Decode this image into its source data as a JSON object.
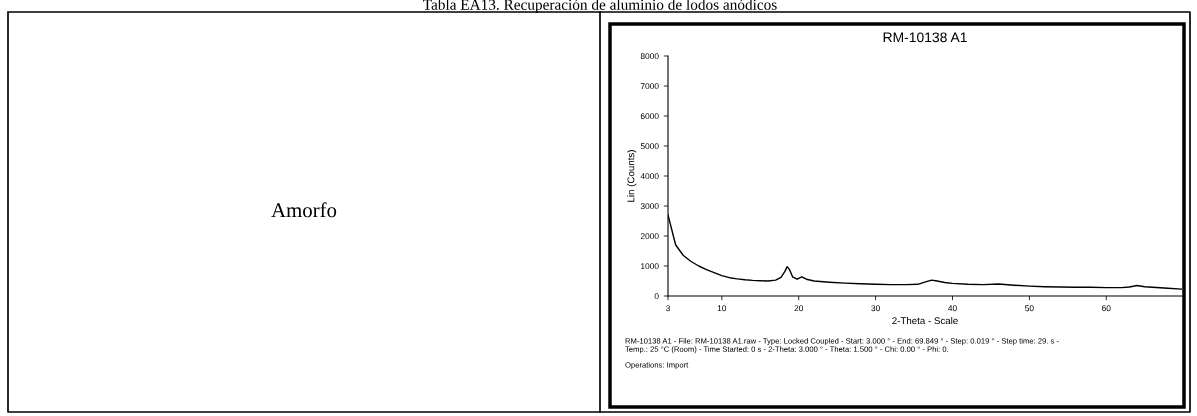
{
  "chart_data": {
    "type": "line",
    "title": "RM-10138 A1",
    "xlabel": "2-Theta - Scale",
    "ylabel": "Lin (Counts)",
    "annotations": [
      "Tabla EA13. Recuperación de aluminio de lodos anódicos",
      "Amorfo",
      "RM-10138 A1 - File: RM-10138 A1.raw - Type: Locked Coupled - Start: 3.000 ° - End: 69.849 ° - Step: 0.019 ° - Step time: 29. s - Temp.: 25 °C (Room) - Time Started: 0 s - 2-Theta: 3.000 ° - Theta: 1.500 ° - Chi: 0.00 ° - Phi: 0.",
      "Operations: Import"
    ],
    "series": [
      {
        "color": "#000000",
        "x": [
          3,
          3.3,
          3.7,
          4,
          5,
          6,
          7,
          8,
          9,
          10,
          11,
          12,
          13,
          14,
          15,
          16,
          17,
          17.7,
          18.2,
          18.5,
          18.8,
          19.2,
          19.8,
          20.4,
          21,
          22,
          24,
          26,
          28,
          30,
          32,
          34,
          35.5,
          36.5,
          37.3,
          38,
          39,
          40,
          42,
          44,
          46,
          48,
          50,
          52,
          54,
          56,
          58,
          60,
          62,
          63,
          64,
          65,
          66,
          68,
          69.8
        ],
        "values": [
          2700,
          2400,
          2000,
          1700,
          1350,
          1150,
          1000,
          880,
          780,
          680,
          610,
          570,
          540,
          520,
          510,
          500,
          530,
          620,
          820,
          980,
          880,
          640,
          560,
          640,
          560,
          500,
          460,
          430,
          410,
          390,
          380,
          380,
          390,
          470,
          530,
          500,
          450,
          420,
          390,
          380,
          400,
          360,
          330,
          310,
          300,
          290,
          290,
          280,
          280,
          300,
          350,
          310,
          290,
          260,
          230
        ]
      }
    ],
    "xlim": [
      3,
      69.849
    ],
    "xticks": [
      3,
      10,
      20,
      30,
      40,
      50,
      60
    ],
    "ylim": [
      0,
      8000
    ],
    "yticks": [
      0,
      1000,
      2000,
      3000,
      4000,
      5000,
      6000,
      7000,
      8000
    ],
    "grid": false,
    "legend": false,
    "marker": "none",
    "line_style": "solid"
  }
}
